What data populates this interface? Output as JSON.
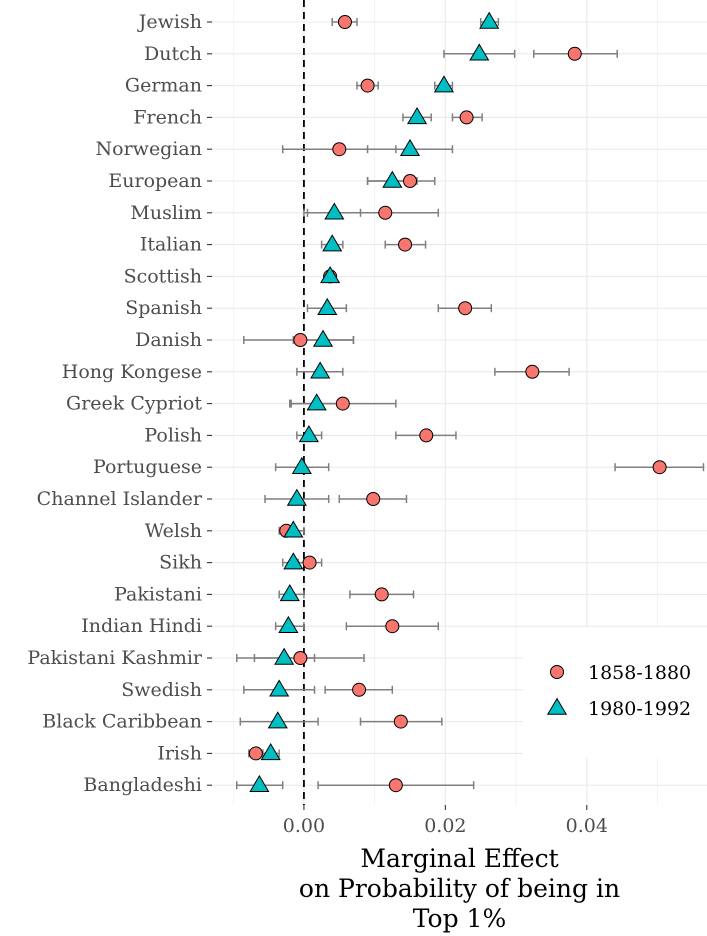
{
  "chart_data": {
    "type": "scatter",
    "orientation": "horizontal",
    "categories": [
      "Jewish",
      "Dutch",
      "German",
      "French",
      "Norwegian",
      "European",
      "Muslim",
      "Italian",
      "Scottish",
      "Spanish",
      "Danish",
      "Hong Kongese",
      "Greek Cypriot",
      "Polish",
      "Portuguese",
      "Channel Islander",
      "Welsh",
      "Sikh",
      "Pakistani",
      "Indian Hindi",
      "Pakistani Kashmir",
      "Swedish",
      "Black Caribbean",
      "Irish",
      "Bangladeshi"
    ],
    "series": [
      {
        "name": "1858-1880",
        "marker": "circle",
        "color": "#F8766D",
        "values": [
          0.0058,
          0.0383,
          0.009,
          0.023,
          0.005,
          0.015,
          0.0115,
          0.0143,
          0.0037,
          0.0228,
          -0.0005,
          0.0323,
          0.0055,
          0.0173,
          0.0503,
          0.0098,
          -0.0025,
          0.0008,
          0.011,
          0.0125,
          -0.0005,
          0.0078,
          0.0137,
          -0.0068,
          0.013
        ],
        "ci_low": [
          0.004,
          0.0325,
          0.0075,
          0.021,
          -0.003,
          0.009,
          0.0,
          0.0115,
          0.003,
          0.019,
          -0.0085,
          0.027,
          -0.002,
          0.013,
          0.044,
          0.005,
          -0.0035,
          -0.0008,
          0.0065,
          0.006,
          -0.0095,
          0.003,
          0.008,
          -0.0078,
          0.002
        ],
        "ci_high": [
          0.0075,
          0.0443,
          0.0105,
          0.0252,
          0.013,
          0.0185,
          0.019,
          0.0172,
          0.0044,
          0.0265,
          0.007,
          0.0375,
          0.013,
          0.0215,
          0.0565,
          0.0145,
          -0.0015,
          0.0025,
          0.0155,
          0.019,
          0.0085,
          0.0125,
          0.0195,
          -0.0058,
          0.024
        ]
      },
      {
        "name": "1980-1992",
        "marker": "triangle",
        "color": "#00BFC4",
        "values": [
          0.0262,
          0.0248,
          0.0198,
          0.016,
          0.015,
          0.0125,
          0.0043,
          0.004,
          0.0037,
          0.0033,
          0.0027,
          0.0023,
          0.0018,
          0.0007,
          -0.0003,
          -0.001,
          -0.0015,
          -0.0015,
          -0.002,
          -0.0022,
          -0.0028,
          -0.0035,
          -0.0037,
          -0.0047,
          -0.0063
        ],
        "ci_low": [
          0.025,
          0.0198,
          0.0185,
          0.014,
          0.009,
          0.009,
          0.0005,
          0.0025,
          0.003,
          0.0005,
          -0.0015,
          -0.001,
          -0.0018,
          -0.001,
          -0.004,
          -0.0055,
          -0.003,
          -0.003,
          -0.0035,
          -0.004,
          -0.007,
          -0.0085,
          -0.009,
          -0.006,
          -0.0095
        ],
        "ci_high": [
          0.0275,
          0.0298,
          0.021,
          0.018,
          0.021,
          0.016,
          0.008,
          0.0055,
          0.0044,
          0.006,
          0.007,
          0.0055,
          0.0055,
          0.0025,
          0.0035,
          0.0035,
          0.0,
          0.0,
          0.0,
          0.0,
          0.0015,
          0.0015,
          0.002,
          -0.0035,
          -0.003
        ]
      }
    ],
    "xlabel": [
      "Marginal Effect",
      "on Probability of being in",
      "Top 1%"
    ],
    "ylabel": "",
    "xlim": [
      -0.013,
      0.057
    ],
    "xticks": [
      0.0,
      0.02,
      0.04
    ],
    "xtick_labels": [
      "0.00",
      "0.02",
      "0.04"
    ],
    "reference_line": {
      "x": 0,
      "style": "dashed"
    },
    "grid": true,
    "legend_position": "bottom-right"
  }
}
